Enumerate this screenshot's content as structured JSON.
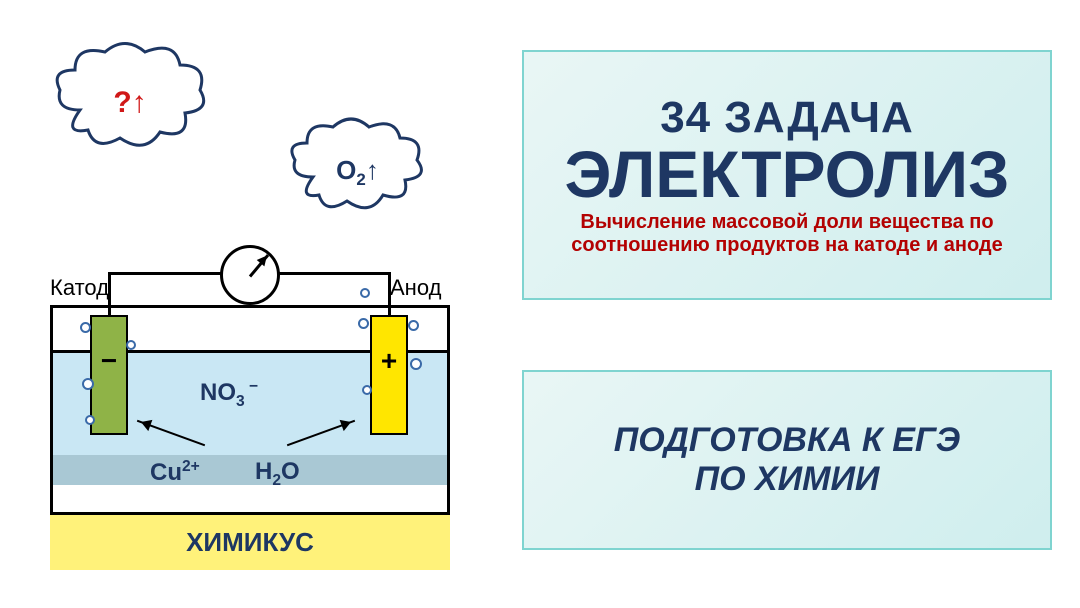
{
  "colors": {
    "panel_bg_gradient_from": "#e9f6f5",
    "panel_bg_gradient_to": "#cfeeee",
    "panel_border": "#7fd4d0",
    "title_color": "#1e3763",
    "subtitle_color": "#b30202",
    "prep_color": "#1e3763",
    "solution_top": "#c9e7f4",
    "solution_mid": "#a9c8d4",
    "cathode_fill": "#8fb347",
    "anode_fill": "#ffe600",
    "footer_fill": "#fff27a",
    "footer_text": "#1e3763",
    "ion_text": "#1e3763",
    "cloud_stroke": "#1e3763",
    "cloud_q_color": "#d01818",
    "bubble_stroke": "#3a6aa8"
  },
  "title_panel": {
    "line1": "34 ЗАДАЧА",
    "line1_fontsize": 44,
    "line2": "ЭЛЕКТРОЛИЗ",
    "line2_fontsize": 66,
    "subtitle": "Вычисление массовой доли вещества по соотношению продуктов на катоде и аноде",
    "subtitle_fontsize": 20
  },
  "prep_panel": {
    "line1": "ПОДГОТОВКА К ЕГЭ",
    "line2": "ПО ХИМИИ",
    "fontsize": 34
  },
  "diagram": {
    "cathode_label": "Катод",
    "anode_label": "Анод",
    "cathode_sign": "−",
    "anode_sign": "+",
    "ion_top": "NO",
    "ion_top_sub": "3",
    "ion_top_sup": " −",
    "ion_bottom_left": "Cu",
    "ion_bottom_left_sup": "2+",
    "ion_bottom_right": "H",
    "ion_bottom_right_sub": "2",
    "ion_bottom_right_tail": "O",
    "footer": "ХИМИКУС",
    "cloud_left": "?↑",
    "cloud_right_main": "O",
    "cloud_right_sub": "2",
    "cloud_right_tail": "↑"
  }
}
